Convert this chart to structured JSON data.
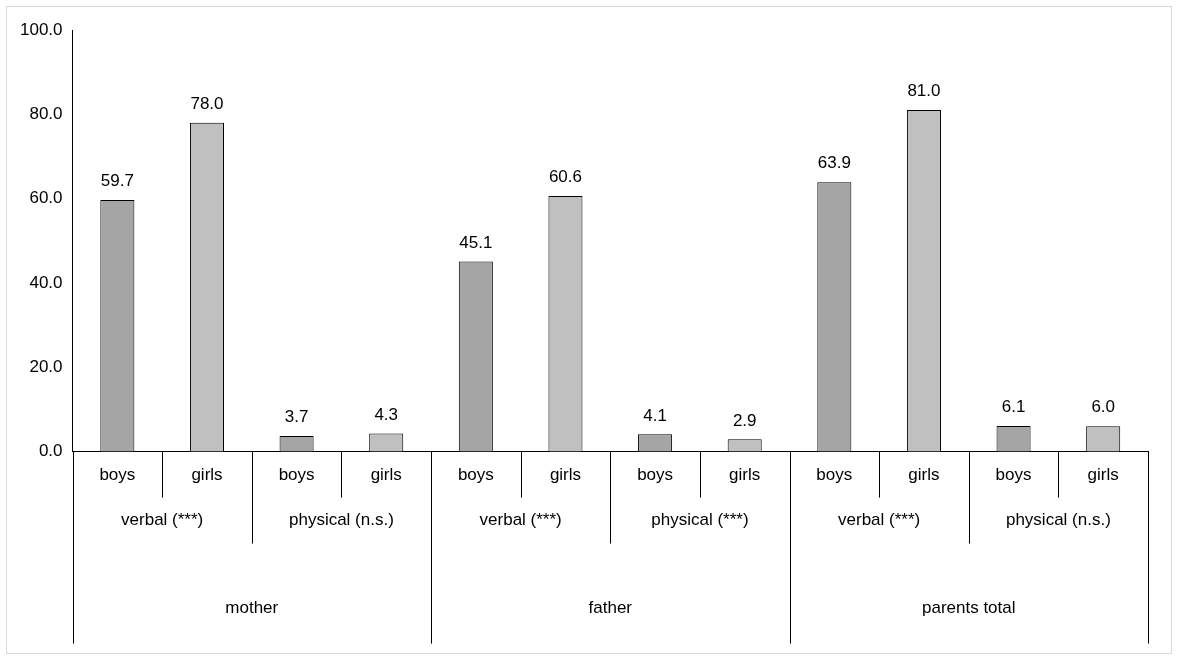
{
  "chart_data": {
    "type": "bar",
    "categories": [
      "boys",
      "girls",
      "boys",
      "girls",
      "boys",
      "girls",
      "boys",
      "girls",
      "boys",
      "girls",
      "boys",
      "girls"
    ],
    "values": [
      59.7,
      78.0,
      3.7,
      4.3,
      45.1,
      60.6,
      4.1,
      2.9,
      63.9,
      81.0,
      6.1,
      6.0
    ],
    "value_labels": [
      "59.7",
      "78.0",
      "3.7",
      "4.3",
      "45.1",
      "60.6",
      "4.1",
      "2.9",
      "63.9",
      "81.0",
      "6.1",
      "6.0"
    ],
    "colors": [
      "#a5a5a5",
      "#c0c0c0",
      "#a5a5a5",
      "#c0c0c0",
      "#a5a5a5",
      "#c0c0c0",
      "#a5a5a5",
      "#c0c0c0",
      "#a5a5a5",
      "#c0c0c0",
      "#a5a5a5",
      "#c0c0c0"
    ],
    "ylim": [
      0,
      100
    ],
    "yticks": [
      {
        "value": 0,
        "label": "0.0"
      },
      {
        "value": 20,
        "label": "20.0"
      },
      {
        "value": 40,
        "label": "40.0"
      },
      {
        "value": 60,
        "label": "60.0"
      },
      {
        "value": 80,
        "label": "80.0"
      },
      {
        "value": 100,
        "label": "100.0"
      }
    ],
    "annotations": [
      "verbal (***)",
      "physical (n.s.)",
      "verbal (***)",
      "physical (***)",
      "verbal (***)",
      "physical (n.s.)",
      "mother",
      "father",
      "parents total"
    ],
    "grid": false,
    "legend": false
  }
}
